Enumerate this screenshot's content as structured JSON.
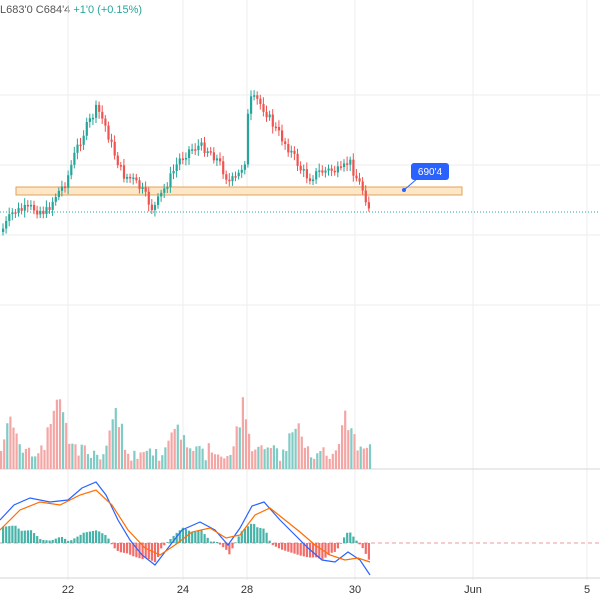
{
  "legend": {
    "low": "L683'0",
    "close": "C684'4",
    "change": "+1'0 (+0.15%)"
  },
  "alert_label": "690'4",
  "colors": {
    "up": "#26a69a",
    "down": "#ef5350",
    "macd_line": "#2962ff",
    "signal_line": "#ff6d00",
    "zone_fill": "#fde7c6",
    "zone_border": "#e0a35a",
    "label_bg": "#2962ff",
    "grid": "#eeeeee"
  },
  "chart_data": {
    "type": "candlestick",
    "x_tick_labels": [
      "22",
      "24",
      "28",
      "30",
      "Jun",
      "5"
    ],
    "resistance_zone_label": "690'4",
    "candles": [
      [
        0,
        0,
        1
      ],
      [
        1,
        1,
        1
      ],
      [
        2,
        1,
        0
      ],
      [
        3,
        0,
        1
      ],
      [
        4,
        1,
        1
      ],
      [
        5,
        1,
        0
      ],
      [
        6,
        0,
        0
      ],
      [
        7,
        0,
        1
      ],
      [
        8,
        1,
        0
      ],
      [
        9,
        0,
        1
      ],
      [
        10,
        1,
        1
      ],
      [
        11,
        1,
        1
      ],
      [
        12,
        1,
        0
      ],
      [
        13,
        0,
        1
      ],
      [
        14,
        1,
        1
      ],
      [
        15,
        1,
        1
      ],
      [
        16,
        1,
        0
      ],
      [
        17,
        0,
        0
      ],
      [
        18,
        0,
        1
      ],
      [
        19,
        1,
        0
      ],
      [
        20,
        0,
        1
      ],
      [
        21,
        1,
        1
      ],
      [
        22,
        1,
        1
      ],
      [
        23,
        1,
        0
      ]
    ]
  }
}
